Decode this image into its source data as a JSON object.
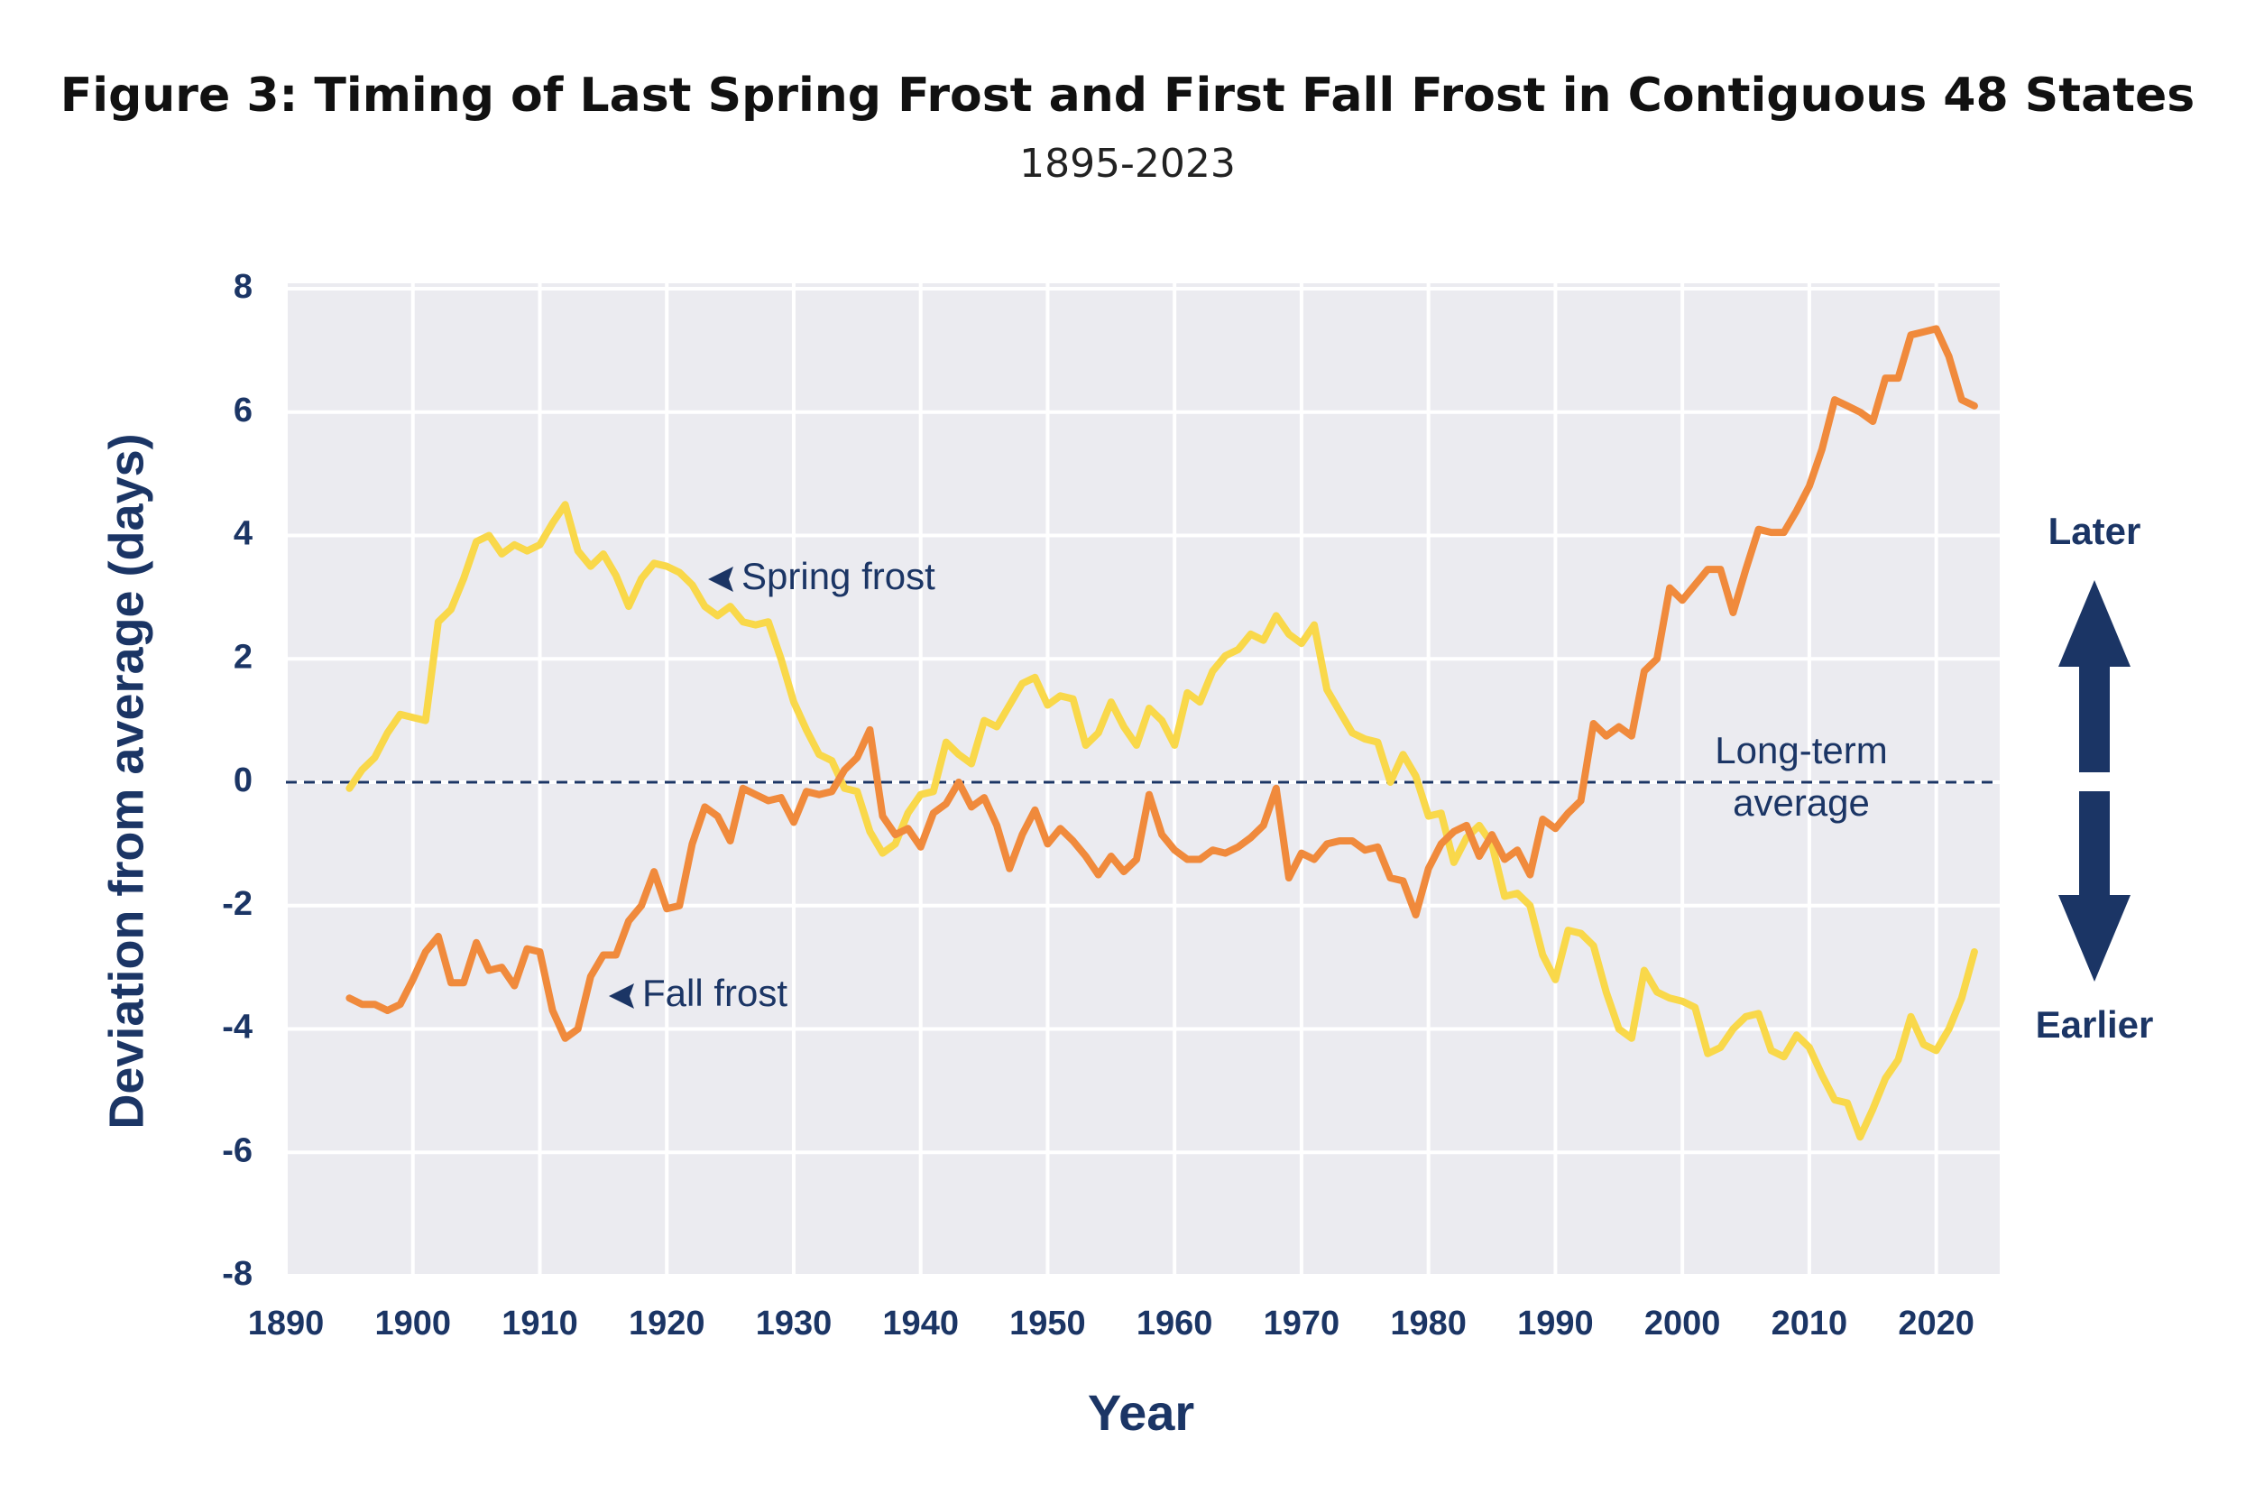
{
  "chart_data": {
    "type": "line",
    "title": "Figure 3: Timing of Last Spring Frost and First Fall Frost in Contiguous 48 States",
    "subtitle": "1895-2023",
    "xlabel": "Year",
    "ylabel": "Deviation from average (days)",
    "x": [
      1895,
      1896,
      1897,
      1898,
      1899,
      1900,
      1901,
      1902,
      1903,
      1904,
      1905,
      1906,
      1907,
      1908,
      1909,
      1910,
      1911,
      1912,
      1913,
      1914,
      1915,
      1916,
      1917,
      1918,
      1919,
      1920,
      1921,
      1922,
      1923,
      1924,
      1925,
      1926,
      1927,
      1928,
      1929,
      1930,
      1931,
      1932,
      1933,
      1934,
      1935,
      1936,
      1937,
      1938,
      1939,
      1940,
      1941,
      1942,
      1943,
      1944,
      1945,
      1946,
      1947,
      1948,
      1949,
      1950,
      1951,
      1952,
      1953,
      1954,
      1955,
      1956,
      1957,
      1958,
      1959,
      1960,
      1961,
      1962,
      1963,
      1964,
      1965,
      1966,
      1967,
      1968,
      1969,
      1970,
      1971,
      1972,
      1973,
      1974,
      1975,
      1976,
      1977,
      1978,
      1979,
      1980,
      1981,
      1982,
      1983,
      1984,
      1985,
      1986,
      1987,
      1988,
      1989,
      1990,
      1991,
      1992,
      1993,
      1994,
      1995,
      1996,
      1997,
      1998,
      1999,
      2000,
      2001,
      2002,
      2003,
      2004,
      2005,
      2006,
      2007,
      2008,
      2009,
      2010,
      2011,
      2012,
      2013,
      2014,
      2015,
      2016,
      2017,
      2018,
      2019,
      2020,
      2021,
      2022,
      2023
    ],
    "series": [
      {
        "name": "Spring frost",
        "color": "#f9d84a",
        "values": [
          -0.1,
          0.2,
          0.4,
          0.8,
          1.1,
          1.05,
          1.0,
          2.6,
          2.8,
          3.3,
          3.9,
          4.0,
          3.7,
          3.85,
          3.75,
          3.85,
          4.2,
          4.5,
          3.75,
          3.5,
          3.7,
          3.35,
          2.85,
          3.3,
          3.55,
          3.5,
          3.4,
          3.2,
          2.85,
          2.7,
          2.85,
          2.6,
          2.55,
          2.6,
          2.0,
          1.3,
          0.85,
          0.45,
          0.35,
          -0.1,
          -0.15,
          -0.8,
          -1.15,
          -1.0,
          -0.5,
          -0.2,
          -0.15,
          0.65,
          0.45,
          0.3,
          1.0,
          0.9,
          1.25,
          1.6,
          1.7,
          1.25,
          1.4,
          1.35,
          0.6,
          0.8,
          1.3,
          0.9,
          0.6,
          1.2,
          1.0,
          0.6,
          1.45,
          1.3,
          1.8,
          2.05,
          2.15,
          2.4,
          2.3,
          2.7,
          2.4,
          2.25,
          2.55,
          1.5,
          1.15,
          0.8,
          0.7,
          0.65,
          0.0,
          0.45,
          0.1,
          -0.55,
          -0.5,
          -1.3,
          -0.9,
          -0.7,
          -1.0,
          -1.85,
          -1.8,
          -2.0,
          -2.8,
          -3.2,
          -2.4,
          -2.45,
          -2.65,
          -3.4,
          -4.0,
          -4.15,
          -3.05,
          -3.4,
          -3.5,
          -3.55,
          -3.65,
          -4.4,
          -4.3,
          -4.0,
          -3.8,
          -3.75,
          -4.35,
          -4.45,
          -4.1,
          -4.3,
          -4.75,
          -5.15,
          -5.2,
          -5.75,
          -5.3,
          -4.8,
          -4.5,
          -3.8,
          -4.25,
          -4.35,
          -4.0,
          -3.5,
          -2.75
        ]
      },
      {
        "name": "Fall frost",
        "color": "#f08a3c",
        "values": [
          -3.5,
          -3.6,
          -3.6,
          -3.7,
          -3.6,
          -3.2,
          -2.75,
          -2.5,
          -3.25,
          -3.25,
          -2.6,
          -3.05,
          -3.0,
          -3.3,
          -2.7,
          -2.75,
          -3.7,
          -4.15,
          -4.0,
          -3.15,
          -2.8,
          -2.8,
          -2.25,
          -2.0,
          -1.45,
          -2.05,
          -2.0,
          -1.0,
          -0.4,
          -0.55,
          -0.95,
          -0.1,
          -0.2,
          -0.3,
          -0.25,
          -0.65,
          -0.15,
          -0.2,
          -0.15,
          0.2,
          0.4,
          0.85,
          -0.55,
          -0.85,
          -0.75,
          -1.05,
          -0.5,
          -0.35,
          0.0,
          -0.4,
          -0.25,
          -0.7,
          -1.4,
          -0.85,
          -0.45,
          -1.0,
          -0.75,
          -0.95,
          -1.2,
          -1.5,
          -1.2,
          -1.45,
          -1.25,
          -0.2,
          -0.85,
          -1.1,
          -1.25,
          -1.25,
          -1.1,
          -1.15,
          -1.05,
          -0.9,
          -0.7,
          -0.1,
          -1.55,
          -1.15,
          -1.25,
          -1.0,
          -0.95,
          -0.95,
          -1.1,
          -1.05,
          -1.55,
          -1.6,
          -2.15,
          -1.4,
          -1.0,
          -0.8,
          -0.7,
          -1.2,
          -0.85,
          -1.25,
          -1.1,
          -1.5,
          -0.6,
          -0.75,
          -0.5,
          -0.3,
          0.95,
          0.75,
          0.9,
          0.75,
          1.8,
          2.0,
          3.15,
          2.95,
          3.2,
          3.45,
          3.45,
          2.75,
          3.45,
          4.1,
          4.05,
          4.05,
          4.4,
          4.8,
          5.4,
          6.2,
          6.1,
          6.0,
          5.85,
          6.55,
          6.55,
          7.25,
          7.3,
          7.35,
          6.9,
          6.2,
          6.1
        ]
      }
    ],
    "reference_line": {
      "value": 0,
      "label": [
        "Long-term",
        "average"
      ]
    },
    "direction_labels": {
      "up": "Later",
      "down": "Earlier"
    },
    "xlim": [
      1890,
      2025
    ],
    "xticks": [
      1890,
      1900,
      1910,
      1920,
      1930,
      1940,
      1950,
      1960,
      1970,
      1980,
      1990,
      2000,
      2010,
      2020
    ],
    "ylim": [
      -8,
      8
    ],
    "yticks": [
      -8,
      -6,
      -4,
      -2,
      0,
      2,
      4,
      6,
      8
    ],
    "grid": true
  }
}
